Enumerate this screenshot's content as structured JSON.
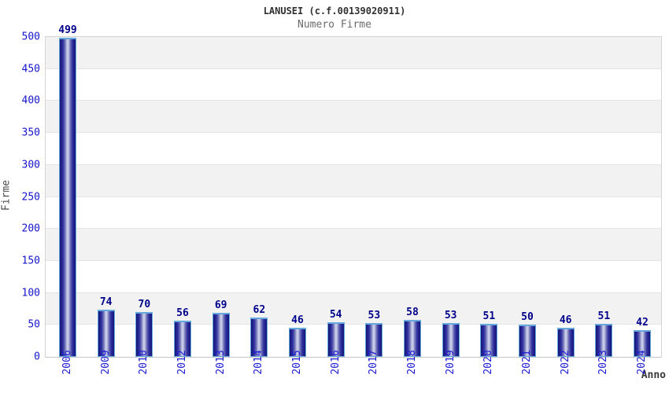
{
  "header": {
    "title": "LANUSEI (c.f.00139020911)",
    "subtitle": "Numero Firme"
  },
  "axes": {
    "y_label": "Firme",
    "x_label": "Anno"
  },
  "chart_data": {
    "type": "bar",
    "title": "LANUSEI (c.f.00139020911)",
    "subtitle": "Numero Firme",
    "xlabel": "Anno",
    "ylabel": "Firme",
    "categories": [
      "2006",
      "2009",
      "2010",
      "2012",
      "2013",
      "2014",
      "2015",
      "2016",
      "2017",
      "2018",
      "2019",
      "2020",
      "2021",
      "2022",
      "2023",
      "2024"
    ],
    "values": [
      499,
      74,
      70,
      56,
      69,
      62,
      46,
      54,
      53,
      58,
      53,
      51,
      50,
      46,
      51,
      42
    ],
    "ylim": [
      0,
      500
    ],
    "ytick_step": 50,
    "yticks": [
      0,
      50,
      100,
      150,
      200,
      250,
      300,
      350,
      400,
      450,
      500
    ],
    "grid": "alternating horizontal bands every 50 units, gray band at top",
    "legend": "none",
    "bar_labels_shown": true,
    "colors": {
      "bar_edge": "#1f1f8c",
      "bar_center": "#d2d5ec",
      "bar_outline_cap": "#64a8dc",
      "value_label": "#00008b",
      "tick_label": "#1515cd",
      "band_gray": "#f2f2f2",
      "band_white": "#ffffff",
      "plot_border": "#d4d4d4",
      "title_color": "#303030",
      "subtitle_color": "#6b6b6b"
    }
  }
}
